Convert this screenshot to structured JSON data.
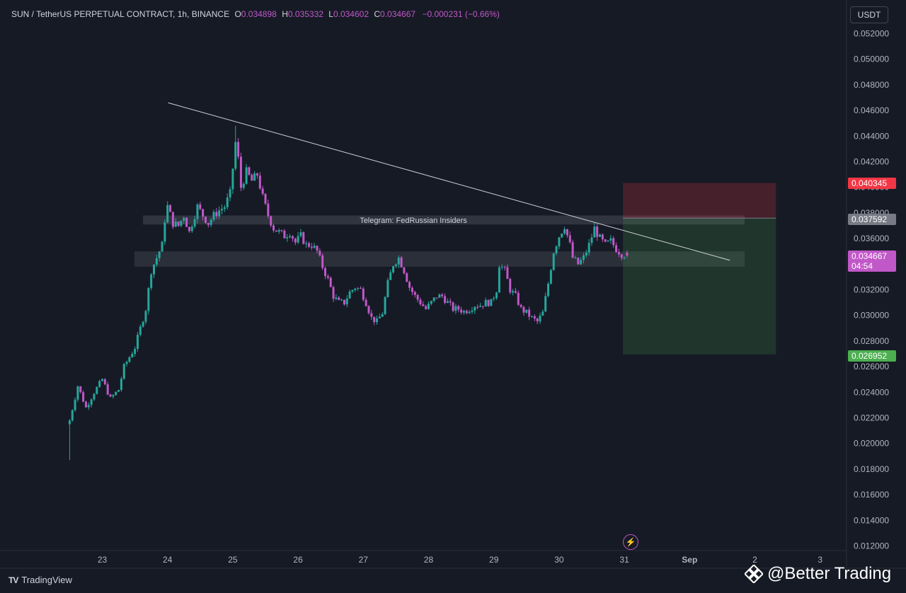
{
  "legend": {
    "symbol": "SUN / TetherUS PERPETUAL CONTRACT, 1h, BINANCE",
    "open_label": "O",
    "open": "0.034898",
    "high_label": "H",
    "high": "0.035332",
    "low_label": "L",
    "low": "0.034602",
    "close_label": "C",
    "close": "0.034667",
    "change": "−0.000231 (−0.66%)"
  },
  "currency_button": "USDT",
  "price_tags": {
    "stop": {
      "label": "0.040345",
      "color": "#f23645"
    },
    "entry": {
      "label": "0.037592",
      "color": "#787b86"
    },
    "current": {
      "label": "0.034667",
      "countdown": "04:54",
      "color": "#c158c8"
    },
    "target": {
      "label": "0.026952",
      "color": "#4caf50"
    }
  },
  "branding": {
    "logo": "TV",
    "name": "TradingView"
  },
  "watermark": {
    "text": "@Better Trading",
    "icon": "binance-diamond-icon"
  },
  "bolt_icon": "lightning-icon",
  "chart_data": {
    "type": "candlestick",
    "up_color": "#26a69a",
    "down_color": "#c158c8",
    "y_ticks": [
      0.052,
      0.05,
      0.048,
      0.046,
      0.044,
      0.042,
      0.04,
      0.038,
      0.036,
      0.034,
      0.032,
      0.03,
      0.028,
      0.026,
      0.024,
      0.022,
      0.02,
      0.018,
      0.016,
      0.014,
      0.012
    ],
    "y_tick_labels": [
      "0.052000",
      "0.050000",
      "0.048000",
      "0.046000",
      "0.044000",
      "0.042000",
      "0.040000",
      "0.038000",
      "0.036000",
      "0.034000",
      "0.032000",
      "0.030000",
      "0.028000",
      "0.026000",
      "0.024000",
      "0.022000",
      "0.020000",
      "0.018000",
      "0.016000",
      "0.014000",
      "0.012000"
    ],
    "ylim": [
      0.0118,
      0.0528
    ],
    "x_ticks": [
      {
        "label": "23",
        "t": 12
      },
      {
        "label": "24",
        "t": 36
      },
      {
        "label": "25",
        "t": 60
      },
      {
        "label": "26",
        "t": 84
      },
      {
        "label": "27",
        "t": 108
      },
      {
        "label": "28",
        "t": 132
      },
      {
        "label": "29",
        "t": 156
      },
      {
        "label": "30",
        "t": 180
      },
      {
        "label": "31",
        "t": 204
      },
      {
        "label": "Sep",
        "t": 228
      },
      {
        "label": "2",
        "t": 252
      },
      {
        "label": "3",
        "t": 276
      }
    ],
    "x_unit": "hours since 22 Aug 00:00",
    "path": [
      [
        0,
        0.0218
      ],
      [
        3,
        0.0245
      ],
      [
        6,
        0.0228
      ],
      [
        9,
        0.024
      ],
      [
        12,
        0.025
      ],
      [
        15,
        0.0235
      ],
      [
        18,
        0.0242
      ],
      [
        20,
        0.026
      ],
      [
        24,
        0.0275
      ],
      [
        26,
        0.029
      ],
      [
        28,
        0.0305
      ],
      [
        30,
        0.0335
      ],
      [
        32,
        0.0345
      ],
      [
        34,
        0.0355
      ],
      [
        35,
        0.0375
      ],
      [
        36,
        0.0385
      ],
      [
        38,
        0.0372
      ],
      [
        40,
        0.037
      ],
      [
        42,
        0.0378
      ],
      [
        44,
        0.0365
      ],
      [
        45,
        0.0372
      ],
      [
        47,
        0.0385
      ],
      [
        49,
        0.0378
      ],
      [
        51,
        0.0372
      ],
      [
        53,
        0.0378
      ],
      [
        55,
        0.0382
      ],
      [
        57,
        0.0385
      ],
      [
        59,
        0.0395
      ],
      [
        60,
        0.0415
      ],
      [
        61,
        0.0435
      ],
      [
        62,
        0.0422
      ],
      [
        63,
        0.04
      ],
      [
        65,
        0.0412
      ],
      [
        67,
        0.0405
      ],
      [
        69,
        0.041
      ],
      [
        71,
        0.0392
      ],
      [
        73,
        0.0378
      ],
      [
        75,
        0.0368
      ],
      [
        77,
        0.0365
      ],
      [
        79,
        0.0362
      ],
      [
        81,
        0.0365
      ],
      [
        83,
        0.0357
      ],
      [
        85,
        0.0362
      ],
      [
        87,
        0.0355
      ],
      [
        89,
        0.0355
      ],
      [
        91,
        0.035
      ],
      [
        93,
        0.0338
      ],
      [
        95,
        0.0328
      ],
      [
        97,
        0.0315
      ],
      [
        99,
        0.031
      ],
      [
        101,
        0.031
      ],
      [
        103,
        0.0318
      ],
      [
        105,
        0.0322
      ],
      [
        107,
        0.032
      ],
      [
        109,
        0.031
      ],
      [
        111,
        0.0298
      ],
      [
        113,
        0.0295
      ],
      [
        115,
        0.0302
      ],
      [
        117,
        0.0325
      ],
      [
        119,
        0.034
      ],
      [
        121,
        0.0345
      ],
      [
        123,
        0.0335
      ],
      [
        125,
        0.0322
      ],
      [
        127,
        0.0315
      ],
      [
        129,
        0.031
      ],
      [
        131,
        0.0305
      ],
      [
        133,
        0.031
      ],
      [
        135,
        0.0315
      ],
      [
        137,
        0.0315
      ],
      [
        139,
        0.031
      ],
      [
        141,
        0.0305
      ],
      [
        143,
        0.0305
      ],
      [
        145,
        0.0303
      ],
      [
        147,
        0.0305
      ],
      [
        149,
        0.0308
      ],
      [
        151,
        0.0308
      ],
      [
        153,
        0.031
      ],
      [
        155,
        0.031
      ],
      [
        157,
        0.032
      ],
      [
        158,
        0.034
      ],
      [
        160,
        0.0335
      ],
      [
        162,
        0.032
      ],
      [
        164,
        0.0315
      ],
      [
        166,
        0.0305
      ],
      [
        168,
        0.0302
      ],
      [
        170,
        0.0298
      ],
      [
        172,
        0.0295
      ],
      [
        174,
        0.0302
      ],
      [
        176,
        0.0325
      ],
      [
        178,
        0.035
      ],
      [
        180,
        0.0362
      ],
      [
        182,
        0.037
      ],
      [
        184,
        0.0355
      ],
      [
        185,
        0.0345
      ],
      [
        187,
        0.034
      ],
      [
        189,
        0.0345
      ],
      [
        191,
        0.0355
      ],
      [
        193,
        0.0368
      ],
      [
        195,
        0.036
      ],
      [
        197,
        0.0355
      ],
      [
        199,
        0.0358
      ],
      [
        201,
        0.0352
      ],
      [
        203,
        0.0348
      ],
      [
        205,
        0.0347
      ]
    ]
  },
  "annotations": {
    "zone_label": "Telegram: FedRussian Insiders",
    "resistance_zone": [
      0.0371,
      0.0378
    ],
    "support_zone": [
      0.0338,
      0.035
    ],
    "trendline": [
      {
        "t": 37,
        "p": 0.0466
      },
      {
        "t": 228,
        "p": 0.0343
      }
    ],
    "position": {
      "t_start": 204,
      "t_end": 228,
      "stop": 0.040345,
      "entry": 0.037592,
      "target": 0.026952
    }
  }
}
